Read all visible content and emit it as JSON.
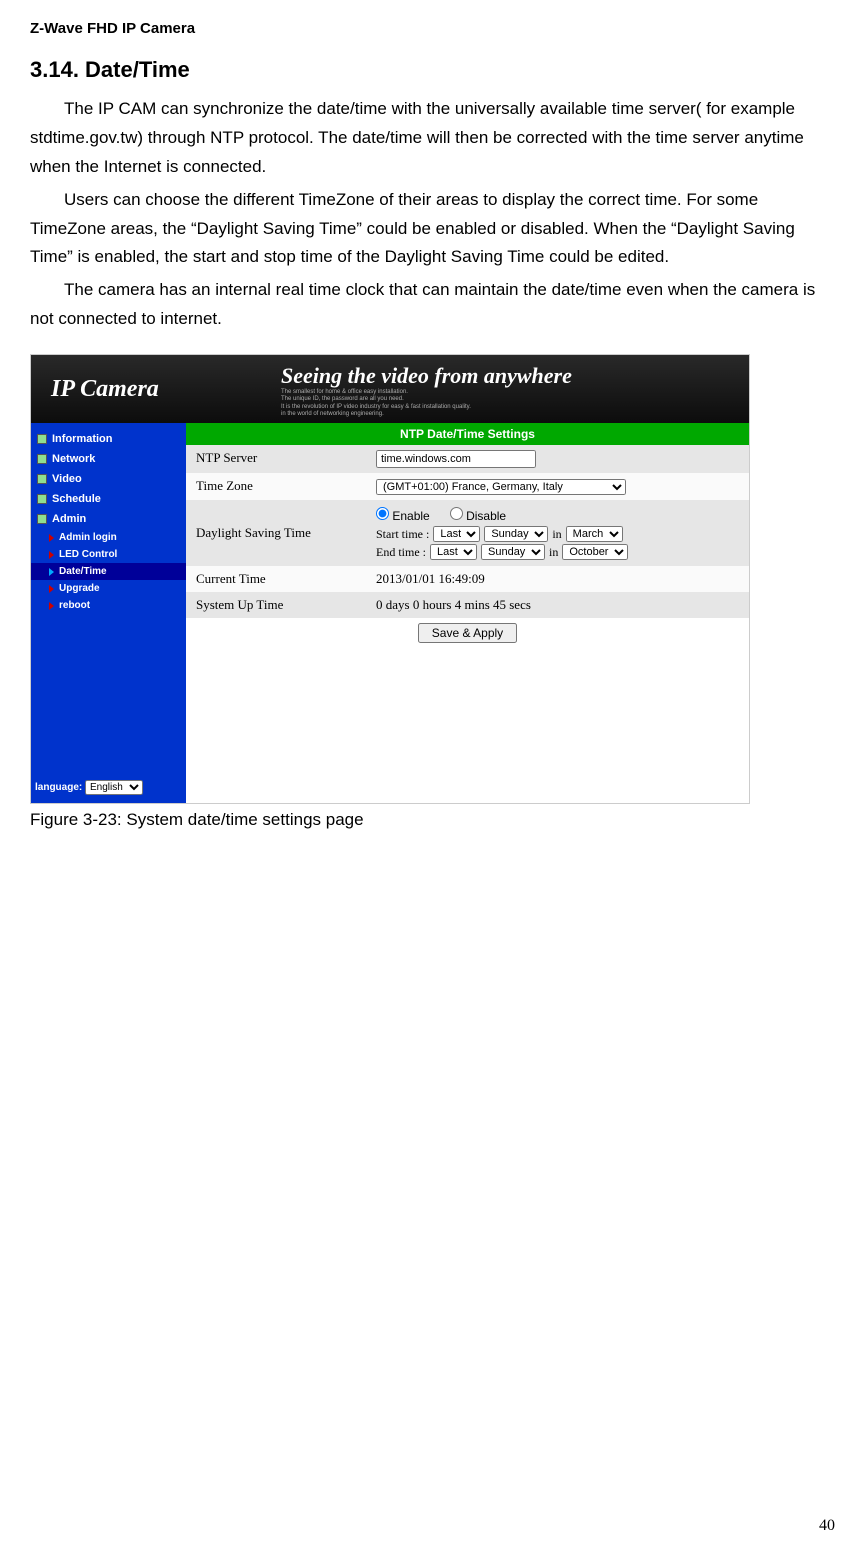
{
  "doc": {
    "header": "Z-Wave FHD IP Camera",
    "section": "3.14.    Date/Time",
    "p1": "The IP CAM can synchronize the date/time with the universally available time server( for example stdtime.gov.tw) through NTP protocol. The date/time will then be corrected with the time server anytime when the Internet is connected.",
    "p2": "Users can choose the different TimeZone of their areas to display the correct time. For some TimeZone areas, the “Daylight Saving Time” could be enabled or disabled. When the “Daylight Saving Time” is enabled, the start and stop time of the Daylight Saving Time could be edited.",
    "p3": "The camera has an internal real time clock that can maintain the date/time even when the camera is not connected to internet.",
    "caption": "Figure 3-23: System date/time settings page",
    "page": "40"
  },
  "app": {
    "logo": "IP Camera",
    "tagline": "Seeing the video from anywhere",
    "sub1": "The smallest for home & office easy installation.",
    "sub2": "The unique ID, the password are all you need.",
    "sub3": "It is the revolution of IP video industry for easy & fast installation quality.",
    "sub4": "in the world of networking engineering.",
    "nav": {
      "info": "Information",
      "network": "Network",
      "video": "Video",
      "schedule": "Schedule",
      "admin": "Admin",
      "adminLogin": "Admin login",
      "led": "LED Control",
      "datetime": "Date/Time",
      "upgrade": "Upgrade",
      "reboot": "reboot"
    },
    "langLabel": "language:",
    "langValue": "English",
    "panel": {
      "title": "NTP Date/Time Settings",
      "ntpLabel": "NTP Server",
      "ntpValue": "time.windows.com",
      "tzLabel": "Time Zone",
      "tzValue": "(GMT+01:00) France, Germany, Italy",
      "dstLabel": "Daylight Saving Time",
      "enable": "Enable",
      "disable": "Disable",
      "startLabel": "Start time :",
      "endLabel": "End time  :",
      "weekOpt": "Last",
      "dayOpt": "Sunday",
      "inWord": "in",
      "monthStart": "March",
      "monthEnd": "October",
      "currentLabel": "Current Time",
      "currentValue": "2013/01/01 16:49:09",
      "uptimeLabel": "System Up Time",
      "uptimeValue": "0 days 0 hours 4 mins 45 secs",
      "saveBtn": "Save & Apply"
    }
  }
}
